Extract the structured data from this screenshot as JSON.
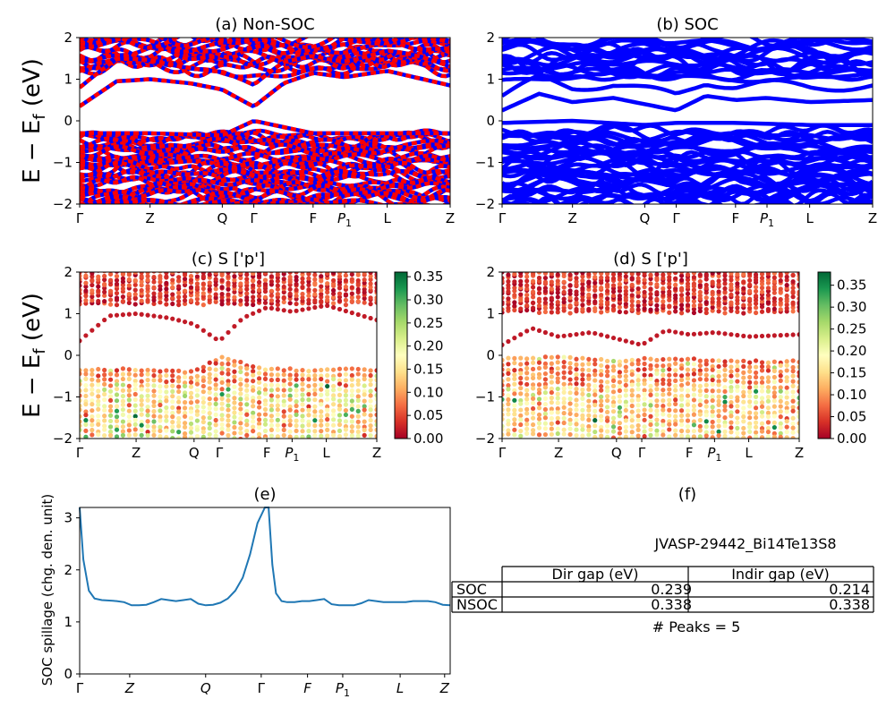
{
  "panels": {
    "a": {
      "title": "(a) Non-SOC"
    },
    "b": {
      "title": "(b) SOC"
    },
    "c": {
      "title": "(c)  S ['p']"
    },
    "d": {
      "title": "(d) S ['p']"
    },
    "e": {
      "title": "(e)"
    },
    "f": {
      "title": "(f)"
    }
  },
  "band_ylabel": "E − E_f (eV)",
  "spillage_ylabel": "SOC spillage (chg. den. unit)",
  "kpath_labels": [
    "Γ",
    "Z",
    "Q",
    "Γ",
    "F",
    "P1",
    "L",
    "Z"
  ],
  "colors": {
    "nonsoc_a": "#0000ff",
    "nonsoc_b": "#ff0000",
    "soc": "#0000ff",
    "spillage_line": "#1f77b4"
  },
  "info": {
    "material_id": "JVASP-29442_Bi14Te13S8",
    "table_header": [
      "",
      "Dir gap (eV)",
      "Indir gap (eV)"
    ],
    "table_rows": [
      [
        "SOC",
        "0.239",
        "0.214"
      ],
      [
        "NSOC",
        "0.338",
        "0.338"
      ]
    ],
    "peaks_text": "# Peaks = 5"
  },
  "chart_data": [
    {
      "panel": "a",
      "type": "line",
      "title": "(a) Non-SOC",
      "ylabel": "E − E_f (eV)",
      "ylim": [
        -2,
        2
      ],
      "yticks": [
        -2,
        -1,
        0,
        1,
        2
      ],
      "xticks": [
        "Γ",
        "Z",
        "Q",
        "Γ",
        "F",
        "P1",
        "L",
        "Z"
      ],
      "xtick_positions": [
        0,
        0.19,
        0.385,
        0.47,
        0.63,
        0.715,
        0.83,
        1.0
      ],
      "lowest_conduction_band": {
        "k": [
          0,
          0.1,
          0.19,
          0.3,
          0.385,
          0.47,
          0.55,
          0.63,
          0.715,
          0.83,
          1.0
        ],
        "E": [
          0.35,
          0.95,
          1.0,
          0.9,
          0.75,
          0.34,
          0.9,
          1.15,
          1.05,
          1.2,
          0.85
        ]
      },
      "highest_valence_band": {
        "k": [
          0,
          0.19,
          0.385,
          0.47,
          0.63,
          0.83,
          1.0
        ],
        "E": [
          -0.3,
          -0.3,
          -0.35,
          0.0,
          -0.3,
          -0.3,
          -0.3
        ]
      },
      "conduction_band_region": [
        1.2,
        2.0
      ],
      "valence_band_region": [
        -2.0,
        -0.3
      ]
    },
    {
      "panel": "b",
      "type": "line",
      "title": "(b) SOC",
      "ylim": [
        -2,
        2
      ],
      "yticks": [
        -2,
        -1,
        0,
        1,
        2
      ],
      "xticks": [
        "Γ",
        "Z",
        "Q",
        "Γ",
        "F",
        "P1",
        "L",
        "Z"
      ],
      "lowest_conduction_band": {
        "k": [
          0,
          0.1,
          0.19,
          0.3,
          0.385,
          0.47,
          0.55,
          0.63,
          0.715,
          0.83,
          1.0
        ],
        "E": [
          0.25,
          0.65,
          0.45,
          0.55,
          0.4,
          0.25,
          0.6,
          0.5,
          0.55,
          0.45,
          0.5
        ]
      },
      "highest_valence_band": {
        "k": [
          0,
          0.19,
          0.385,
          0.47,
          0.63,
          0.83,
          1.0
        ],
        "E": [
          -0.05,
          0.0,
          -0.1,
          -0.05,
          -0.05,
          -0.1,
          -0.1
        ]
      },
      "conduction_band_region": [
        1.0,
        2.0
      ],
      "valence_band_region": [
        -2.0,
        -0.2
      ]
    },
    {
      "panel": "c",
      "type": "scatter",
      "title": "(c)  S ['p']",
      "ylabel": "E − E_f (eV)",
      "ylim": [
        -2,
        2
      ],
      "yticks": [
        -2,
        -1,
        0,
        1,
        2
      ],
      "colorbar": {
        "cmap": "RdYlGn",
        "range": [
          0.0,
          0.36
        ],
        "ticks": [
          "0.00",
          "0.05",
          "0.10",
          "0.15",
          "0.20",
          "0.25",
          "0.30",
          "0.35"
        ]
      }
    },
    {
      "panel": "d",
      "type": "scatter",
      "title": "(d) S ['p']",
      "ylim": [
        -2,
        2
      ],
      "yticks": [
        -2,
        -1,
        0,
        1,
        2
      ],
      "colorbar": {
        "cmap": "RdYlGn",
        "range": [
          0.0,
          0.38
        ],
        "ticks": [
          "0.00",
          "0.05",
          "0.10",
          "0.15",
          "0.20",
          "0.25",
          "0.30",
          "0.35"
        ]
      }
    },
    {
      "panel": "e",
      "type": "line",
      "title": "(e)",
      "ylabel": "SOC spillage (chg. den. unit)",
      "ylim": [
        0,
        3.2
      ],
      "yticks": [
        0,
        1,
        2,
        3
      ],
      "xticks": [
        "Γ",
        "Z",
        "Q",
        "Γ",
        "F",
        "P1",
        "L",
        "Z"
      ],
      "x": [
        0,
        0.01,
        0.025,
        0.04,
        0.06,
        0.08,
        0.1,
        0.12,
        0.14,
        0.16,
        0.18,
        0.2,
        0.22,
        0.24,
        0.26,
        0.28,
        0.3,
        0.32,
        0.34,
        0.36,
        0.38,
        0.4,
        0.42,
        0.44,
        0.46,
        0.48,
        0.5,
        0.505,
        0.51,
        0.52,
        0.53,
        0.545,
        0.56,
        0.58,
        0.6,
        0.62,
        0.64,
        0.66,
        0.68,
        0.7,
        0.72,
        0.74,
        0.76,
        0.78,
        0.8,
        0.82,
        0.84,
        0.86,
        0.88,
        0.9,
        0.92,
        0.94,
        0.96,
        0.98,
        1.0
      ],
      "y": [
        3.2,
        2.2,
        1.6,
        1.45,
        1.42,
        1.41,
        1.4,
        1.38,
        1.32,
        1.32,
        1.33,
        1.38,
        1.44,
        1.42,
        1.4,
        1.42,
        1.44,
        1.35,
        1.32,
        1.33,
        1.37,
        1.45,
        1.6,
        1.85,
        2.3,
        2.9,
        3.2,
        3.2,
        3.2,
        2.1,
        1.55,
        1.4,
        1.38,
        1.38,
        1.4,
        1.4,
        1.42,
        1.44,
        1.34,
        1.32,
        1.32,
        1.32,
        1.36,
        1.42,
        1.4,
        1.38,
        1.38,
        1.38,
        1.38,
        1.4,
        1.4,
        1.4,
        1.38,
        1.33,
        1.32
      ]
    }
  ]
}
